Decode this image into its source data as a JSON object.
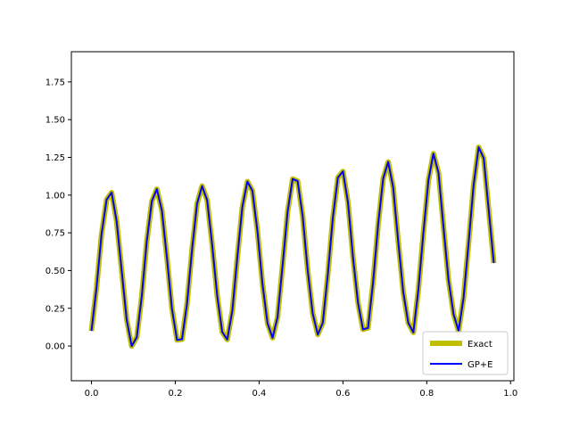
{
  "chart_data": {
    "type": "line",
    "xlim": [
      -0.048,
      1.008
    ],
    "ylim": [
      -0.23,
      1.95
    ],
    "xticks": [
      0.0,
      0.2,
      0.4,
      0.6,
      0.8,
      1.0
    ],
    "xtick_labels": [
      "0.0",
      "0.2",
      "0.4",
      "0.6",
      "0.8",
      "1.0"
    ],
    "yticks": [
      0.0,
      0.25,
      0.5,
      0.75,
      1.0,
      1.25,
      1.5,
      1.75
    ],
    "ytick_labels": [
      "0.00",
      "0.25",
      "0.50",
      "0.75",
      "1.00",
      "1.25",
      "1.50",
      "1.75"
    ],
    "legend_position": "bottom-right",
    "series": [
      {
        "name": "Exact",
        "color": "#bfbf00",
        "style": "thick-solid",
        "x": [
          0.0,
          0.012,
          0.024,
          0.036,
          0.048,
          0.06,
          0.072,
          0.084,
          0.096,
          0.108,
          0.12,
          0.132,
          0.144,
          0.156,
          0.168,
          0.18,
          0.192,
          0.204,
          0.216,
          0.228,
          0.24,
          0.252,
          0.264,
          0.276,
          0.288,
          0.3,
          0.312,
          0.324,
          0.336,
          0.348,
          0.36,
          0.372,
          0.384,
          0.396,
          0.408,
          0.42,
          0.432,
          0.444,
          0.456,
          0.468,
          0.48,
          0.492,
          0.504,
          0.516,
          0.528,
          0.54,
          0.552,
          0.564,
          0.576,
          0.588,
          0.6,
          0.612,
          0.624,
          0.636,
          0.648,
          0.66,
          0.672,
          0.684,
          0.696,
          0.708,
          0.72,
          0.732,
          0.744,
          0.756,
          0.768,
          0.78,
          0.792,
          0.804,
          0.816,
          0.828,
          0.84,
          0.852,
          0.864,
          0.876,
          0.888,
          0.9,
          0.912,
          0.924,
          0.936,
          0.948,
          0.96
        ],
        "y": [
          0.1,
          0.386,
          0.74,
          0.97,
          1.017,
          0.828,
          0.5,
          0.174,
          0.0,
          0.058,
          0.33,
          0.693,
          0.96,
          1.04,
          0.898,
          0.585,
          0.249,
          0.04,
          0.045,
          0.279,
          0.641,
          0.944,
          1.06,
          0.966,
          0.673,
          0.33,
          0.093,
          0.043,
          0.233,
          0.586,
          0.92,
          1.09,
          1.029,
          0.765,
          0.412,
          0.152,
          0.054,
          0.191,
          0.532,
          0.89,
          1.107,
          1.093,
          0.859,
          0.5,
          0.216,
          0.076,
          0.154,
          0.478,
          0.85,
          1.116,
          1.157,
          0.954,
          0.592,
          0.285,
          0.11,
          0.12,
          0.424,
          0.802,
          1.11,
          1.22,
          1.052,
          0.688,
          0.358,
          0.154,
          0.09,
          0.371,
          0.746,
          1.098,
          1.275,
          1.148,
          0.789,
          0.438,
          0.21,
          0.1,
          0.32,
          0.688,
          1.07,
          1.317,
          1.244,
          0.9,
          0.55
        ]
      },
      {
        "name": "GP+E",
        "color": "#0000ff",
        "style": "solid",
        "x": [
          0.0,
          0.012,
          0.024,
          0.036,
          0.048,
          0.06,
          0.072,
          0.084,
          0.096,
          0.108,
          0.12,
          0.132,
          0.144,
          0.156,
          0.168,
          0.18,
          0.192,
          0.204,
          0.216,
          0.228,
          0.24,
          0.252,
          0.264,
          0.276,
          0.288,
          0.3,
          0.312,
          0.324,
          0.336,
          0.348,
          0.36,
          0.372,
          0.384,
          0.396,
          0.408,
          0.42,
          0.432,
          0.444,
          0.456,
          0.468,
          0.48,
          0.492,
          0.504,
          0.516,
          0.528,
          0.54,
          0.552,
          0.564,
          0.576,
          0.588,
          0.6,
          0.612,
          0.624,
          0.636,
          0.648,
          0.66,
          0.672,
          0.684,
          0.696,
          0.708,
          0.72,
          0.732,
          0.744,
          0.756,
          0.768,
          0.78,
          0.792,
          0.804,
          0.816,
          0.828,
          0.84,
          0.852,
          0.864,
          0.876,
          0.888,
          0.9,
          0.912,
          0.924,
          0.936,
          0.948,
          0.96
        ],
        "y": [
          0.1,
          0.386,
          0.74,
          0.97,
          1.017,
          0.828,
          0.5,
          0.174,
          0.0,
          0.058,
          0.33,
          0.693,
          0.96,
          1.04,
          0.898,
          0.585,
          0.249,
          0.04,
          0.045,
          0.279,
          0.641,
          0.944,
          1.06,
          0.966,
          0.673,
          0.33,
          0.093,
          0.043,
          0.233,
          0.586,
          0.92,
          1.09,
          1.029,
          0.765,
          0.412,
          0.152,
          0.054,
          0.191,
          0.532,
          0.89,
          1.107,
          1.093,
          0.859,
          0.5,
          0.216,
          0.076,
          0.154,
          0.478,
          0.85,
          1.116,
          1.157,
          0.954,
          0.592,
          0.285,
          0.11,
          0.12,
          0.424,
          0.802,
          1.11,
          1.22,
          1.052,
          0.688,
          0.358,
          0.154,
          0.09,
          0.371,
          0.746,
          1.098,
          1.275,
          1.148,
          0.789,
          0.438,
          0.21,
          0.1,
          0.32,
          0.688,
          1.07,
          1.317,
          1.244,
          0.9,
          0.55
        ]
      }
    ]
  }
}
